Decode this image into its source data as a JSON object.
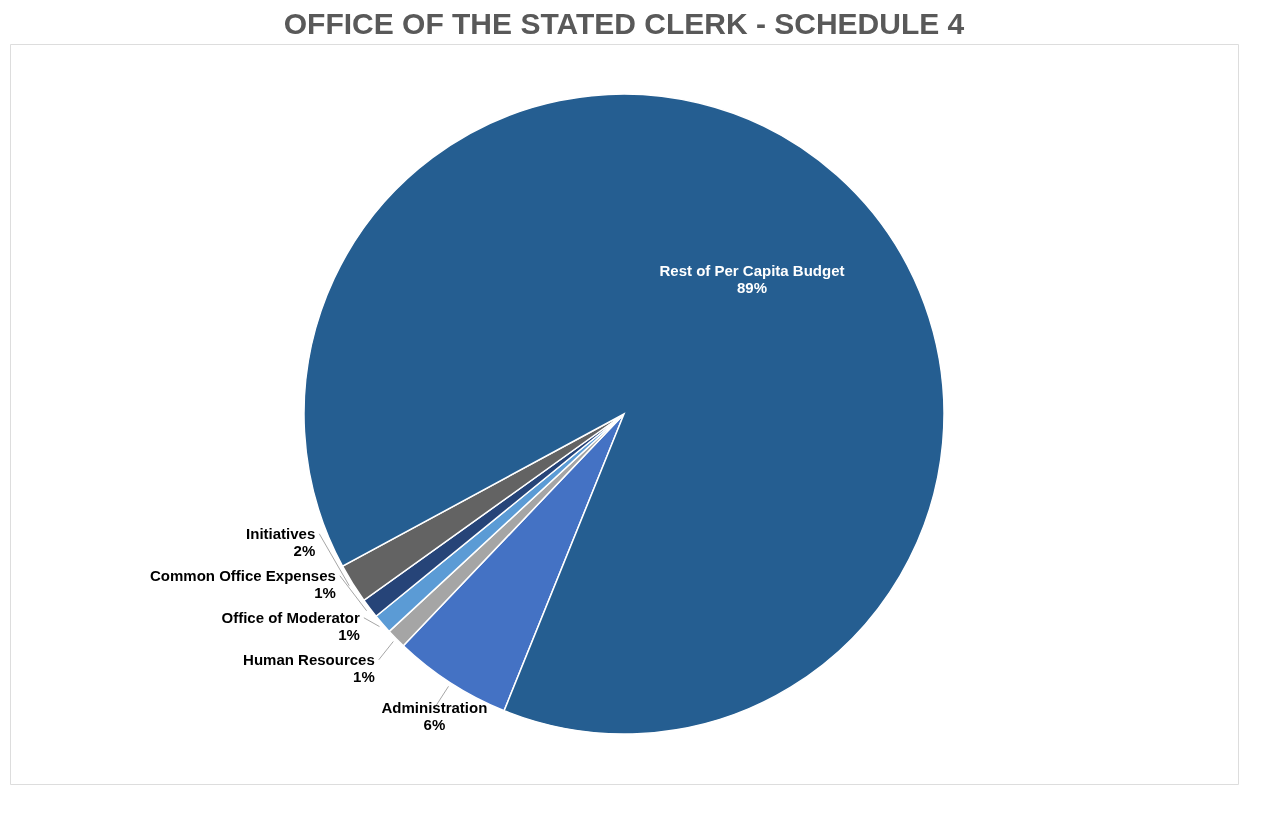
{
  "chart_data": {
    "type": "pie",
    "title": "OFFICE OF THE STATED CLERK - SCHEDULE 4",
    "categories": [
      "Administration",
      "Human Resources",
      "Office of Moderator",
      "Common Office Expenses",
      "Initiatives",
      "Rest of Per Capita Budget"
    ],
    "values": [
      6,
      1,
      1,
      1,
      2,
      89
    ],
    "value_labels": [
      "6%",
      "1%",
      "1%",
      "1%",
      "2%",
      "89%"
    ],
    "colors": [
      "#4472c4",
      "#a5a5a5",
      "#5b9bd5",
      "#264478",
      "#636363",
      "#255e91"
    ]
  }
}
